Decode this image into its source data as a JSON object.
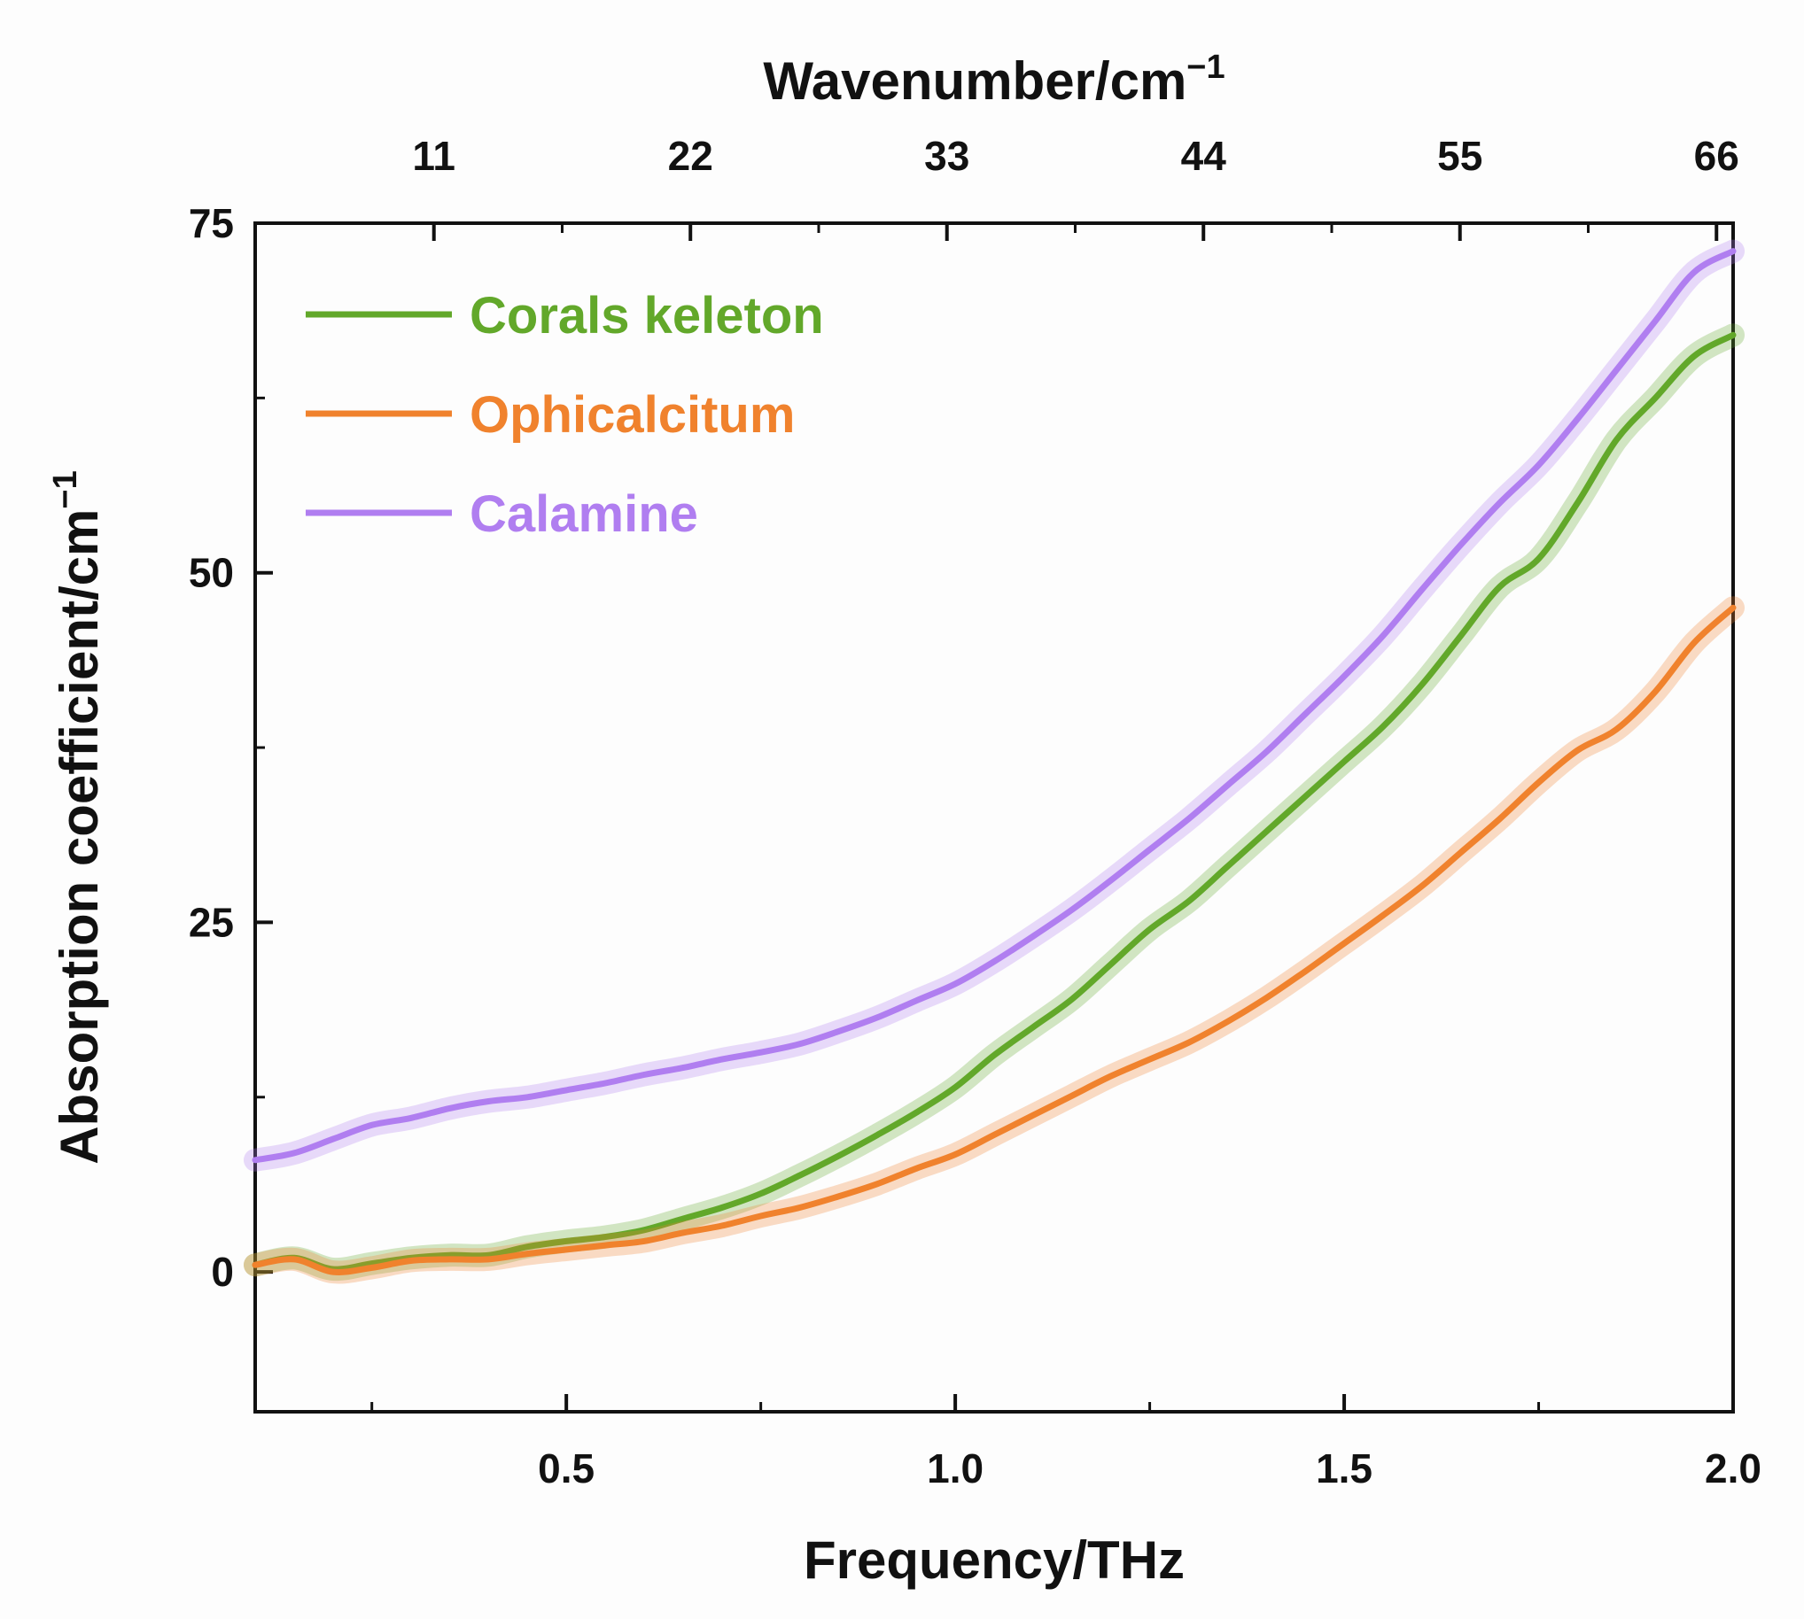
{
  "chart_data": {
    "type": "line",
    "xlabel": "Frequency/THz",
    "ylabel_main": "Absorption coefficient/cm",
    "ylabel_sup": "−1",
    "x2label_main": "Wavenumber/cm",
    "x2label_sup": "−1",
    "xlim": [
      0.1,
      2.0
    ],
    "ylim": [
      -10,
      75
    ],
    "x_ticks": [
      0.5,
      1.0,
      1.5,
      2.0
    ],
    "x_tick_labels": [
      "0.5",
      "1.0",
      "1.5",
      "2.0"
    ],
    "x_minor_ticks": [
      0.25,
      0.75,
      1.25,
      1.75
    ],
    "y_ticks": [
      0,
      25,
      50,
      75
    ],
    "y_tick_labels": [
      "0",
      "25",
      "50",
      "75"
    ],
    "y_minor_ticks": [
      12.5,
      37.5,
      62.5
    ],
    "x2_ticks": [
      11,
      22,
      33,
      44,
      55,
      66
    ],
    "x2_tick_labels": [
      "11",
      "22",
      "33",
      "44",
      "55",
      "66"
    ],
    "x2_minor_ticks": [
      16.5,
      27.5,
      38.5,
      49.5,
      60.5
    ],
    "x2_scale_thz_per_cm": 0.0299792,
    "legend_position": "top-left",
    "series": [
      {
        "name": "Corals keleton",
        "color": "#62a82a",
        "x": [
          0.1,
          0.15,
          0.2,
          0.25,
          0.3,
          0.35,
          0.4,
          0.45,
          0.5,
          0.55,
          0.6,
          0.65,
          0.7,
          0.75,
          0.8,
          0.85,
          0.9,
          0.95,
          1.0,
          1.05,
          1.1,
          1.15,
          1.2,
          1.25,
          1.3,
          1.35,
          1.4,
          1.45,
          1.5,
          1.55,
          1.6,
          1.65,
          1.7,
          1.75,
          1.8,
          1.85,
          1.9,
          1.95,
          2.0
        ],
        "y": [
          0.5,
          1.0,
          0.2,
          0.6,
          1.0,
          1.2,
          1.2,
          1.8,
          2.2,
          2.5,
          3.0,
          3.8,
          4.6,
          5.6,
          6.9,
          8.3,
          9.8,
          11.4,
          13.2,
          15.5,
          17.5,
          19.5,
          22.0,
          24.5,
          26.5,
          29.0,
          31.5,
          34.0,
          36.5,
          39.0,
          42.0,
          45.5,
          49.0,
          51.0,
          55.0,
          59.5,
          62.5,
          65.5,
          67.0
        ]
      },
      {
        "name": "Ophicalcitum",
        "color": "#f0822d",
        "x": [
          0.1,
          0.15,
          0.2,
          0.25,
          0.3,
          0.35,
          0.4,
          0.45,
          0.5,
          0.55,
          0.6,
          0.65,
          0.7,
          0.75,
          0.8,
          0.85,
          0.9,
          0.95,
          1.0,
          1.05,
          1.1,
          1.15,
          1.2,
          1.25,
          1.3,
          1.35,
          1.4,
          1.45,
          1.5,
          1.55,
          1.6,
          1.65,
          1.7,
          1.75,
          1.8,
          1.85,
          1.9,
          1.95,
          2.0
        ],
        "y": [
          0.5,
          0.9,
          0.0,
          0.3,
          0.8,
          0.9,
          0.9,
          1.3,
          1.6,
          1.9,
          2.2,
          2.8,
          3.3,
          4.0,
          4.6,
          5.4,
          6.3,
          7.4,
          8.4,
          9.8,
          11.2,
          12.6,
          14.0,
          15.2,
          16.4,
          17.9,
          19.6,
          21.5,
          23.5,
          25.5,
          27.6,
          30.0,
          32.4,
          35.0,
          37.3,
          38.8,
          41.5,
          45.0,
          47.5
        ]
      },
      {
        "name": "Calamine",
        "color": "#b07ef0",
        "x": [
          0.1,
          0.15,
          0.2,
          0.25,
          0.3,
          0.35,
          0.4,
          0.45,
          0.5,
          0.55,
          0.6,
          0.65,
          0.7,
          0.75,
          0.8,
          0.85,
          0.9,
          0.95,
          1.0,
          1.05,
          1.1,
          1.15,
          1.2,
          1.25,
          1.3,
          1.35,
          1.4,
          1.45,
          1.5,
          1.55,
          1.6,
          1.65,
          1.7,
          1.75,
          1.8,
          1.85,
          1.9,
          1.95,
          2.0
        ],
        "y": [
          8.0,
          8.5,
          9.5,
          10.5,
          11.0,
          11.7,
          12.2,
          12.5,
          13.0,
          13.5,
          14.1,
          14.6,
          15.2,
          15.7,
          16.3,
          17.2,
          18.2,
          19.4,
          20.6,
          22.2,
          24.0,
          25.9,
          28.0,
          30.2,
          32.4,
          34.8,
          37.2,
          39.9,
          42.6,
          45.5,
          48.8,
          52.0,
          55.0,
          57.7,
          61.0,
          64.5,
          68.0,
          71.5,
          73.0
        ]
      }
    ]
  }
}
